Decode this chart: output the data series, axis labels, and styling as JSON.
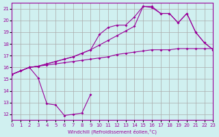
{
  "xlabel": "Windchill (Refroidissement éolien,°C)",
  "bg_color": "#d0f0f0",
  "line_color": "#990099",
  "grid_color": "#aaaaaa",
  "xlim": [
    0,
    23
  ],
  "ylim": [
    11.5,
    21.5
  ],
  "xticks": [
    0,
    1,
    2,
    3,
    4,
    5,
    6,
    7,
    8,
    9,
    10,
    11,
    12,
    13,
    14,
    15,
    16,
    17,
    18,
    19,
    20,
    21,
    22,
    23
  ],
  "yticks": [
    12,
    13,
    14,
    15,
    16,
    17,
    18,
    19,
    20,
    21
  ],
  "line1_y": [
    15.4,
    15.7,
    16.0,
    15.1,
    12.9,
    12.8,
    11.9,
    12.0,
    12.1,
    13.7,
    null,
    null,
    null,
    null,
    null,
    null,
    null,
    null,
    null,
    null,
    null,
    null,
    null,
    null
  ],
  "line2_y": [
    15.4,
    15.7,
    16.0,
    16.1,
    16.2,
    16.3,
    16.4,
    16.5,
    16.6,
    16.7,
    16.8,
    16.9,
    17.1,
    17.2,
    17.3,
    17.4,
    17.5,
    17.5,
    17.5,
    17.6,
    17.6,
    17.6,
    17.6,
    17.6
  ],
  "line3_y": [
    15.4,
    15.7,
    16.0,
    16.1,
    16.3,
    16.5,
    16.7,
    16.9,
    17.2,
    17.5,
    17.9,
    18.3,
    18.7,
    19.1,
    19.5,
    21.2,
    21.2,
    20.6,
    20.6,
    19.8,
    20.6,
    19.0,
    18.1,
    17.5
  ],
  "line4_y": [
    15.4,
    15.7,
    16.0,
    16.1,
    16.3,
    16.5,
    16.7,
    16.9,
    17.2,
    17.5,
    18.8,
    19.4,
    19.6,
    19.6,
    20.3,
    21.2,
    21.1,
    20.6,
    20.6,
    19.8,
    20.6,
    19.0,
    18.1,
    17.5
  ]
}
